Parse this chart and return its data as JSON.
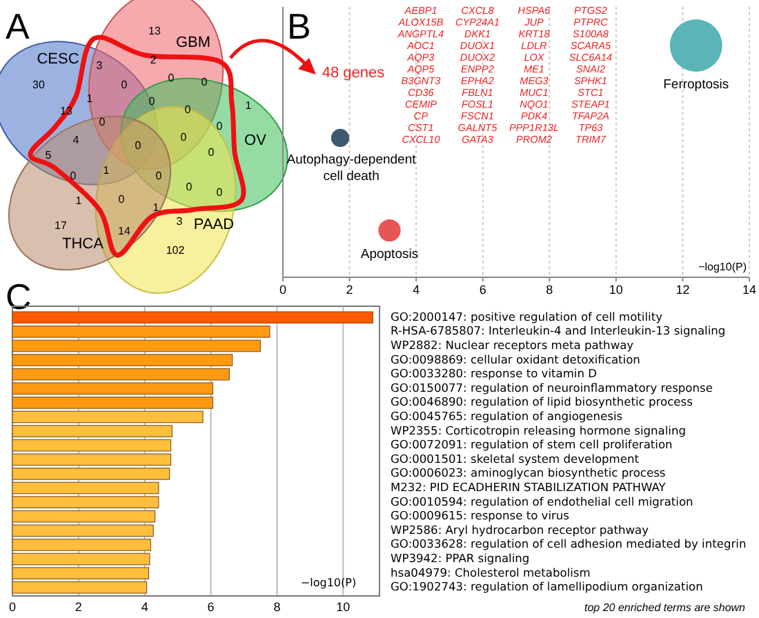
{
  "chart_data": [
    {
      "type": "other",
      "title": "A",
      "categories": [
        "CESC",
        "GBM",
        "OV",
        "PAAD",
        "THCA"
      ],
      "colors": [
        "#4a72c8",
        "#f0646a",
        "#3cbf5a",
        "#f0e650",
        "#b98a6a"
      ],
      "annotations": [
        "13",
        "3",
        "2",
        "30",
        "0",
        "0",
        "0",
        "1",
        "1",
        "13",
        "0",
        "0",
        "0",
        "0",
        "4",
        "0",
        "0",
        "5",
        "0",
        "1",
        "0",
        "0",
        "1",
        "0",
        "0",
        "0",
        "1",
        "17",
        "3",
        "14",
        "102"
      ]
    },
    {
      "type": "bubble",
      "title": "B",
      "orientation": "horizontal",
      "categories": [
        null,
        null,
        null
      ],
      "xlabel": "−log10(P)",
      "xlim": [
        0,
        14
      ],
      "xticks": [
        0,
        2,
        4,
        6,
        8,
        10,
        12,
        14
      ],
      "grid": "x",
      "series": [
        {
          "name": "Ferroptosis",
          "color": "#5bb5b8",
          "values": [
            12.4,
            null,
            null
          ],
          "sizes": [
            1,
            null,
            null
          ]
        },
        {
          "name": "Autophagy-dependent cell death",
          "color": "#3e5a6e",
          "values": [
            null,
            1.72,
            null
          ],
          "sizes": [
            null,
            0.12,
            null
          ]
        },
        {
          "name": "Apoptosis",
          "color": "#e85555",
          "values": [
            null,
            null,
            3.2
          ],
          "sizes": [
            null,
            null,
            0.18
          ]
        }
      ],
      "annotations": [
        "48 genes",
        "AEBP1",
        "ALOX15B",
        "ANGPTL4",
        "AOC1",
        "AQP3",
        "AQP5",
        "B3GNT3",
        "CD36",
        "CEMIP",
        "CP",
        "CST1",
        "CXCL10",
        "CXCL8",
        "CYP24A1",
        "DKK1",
        "DUOX1",
        "DUOX2",
        "ENPP2",
        "EPHA2",
        "FBLN1",
        "FOSL1",
        "FSCN1",
        "GALNT5",
        "GATA3",
        "HSPA6",
        "JUP",
        "KRT18",
        "LDLR",
        "LOX",
        "ME1",
        "MEG3",
        "MUC1",
        "NQO1",
        "PDK4",
        "PPP1R13L",
        "PROM2",
        "PTGS2",
        "PTPRC",
        "S100A8",
        "SCARA5",
        "SLC6A14",
        "SNAI2",
        "SPHK1",
        "STC1",
        "STEAP1",
        "TFAP2A",
        "TP63",
        "TRIM7"
      ]
    },
    {
      "type": "bar",
      "title": "C",
      "orientation": "horizontal",
      "xlabel": "−log10(P)",
      "xlim": [
        0,
        11.1
      ],
      "xticks": [
        0,
        2,
        4,
        6,
        8,
        10
      ],
      "grid": "x",
      "categories": [
        "GO:2000147: positive regulation of cell motility",
        "R-HSA-6785807: Interleukin-4 and Interleukin-13 signaling",
        "WP2882: Nuclear receptors meta pathway",
        "GO:0098869: cellular oxidant detoxification",
        "GO:0033280: response to vitamin D",
        "GO:0150077: regulation of neuroinflammatory response",
        "GO:0046890: regulation of lipid biosynthetic process",
        "GO:0045765: regulation of angiogenesis",
        "WP2355: Corticotropin releasing hormone signaling",
        "GO:0072091: regulation of stem cell proliferation",
        "GO:0001501: skeletal system development",
        "GO:0006023: aminoglycan biosynthetic process",
        "M232: PID ECADHERIN STABILIZATION PATHWAY",
        "GO:0010594: regulation of endothelial cell migration",
        "GO:0009615: response to virus",
        "WP2586: Aryl hydrocarbon receptor pathway",
        "GO:0033628: regulation of cell adhesion mediated by integrin",
        "WP3942: PPAR signaling",
        "hsa04979: Cholesterol metabolism",
        "GO:1902743: regulation of lamellipodium organization"
      ],
      "values": [
        10.9,
        7.78,
        7.5,
        6.65,
        6.56,
        6.06,
        6.06,
        5.76,
        4.83,
        4.79,
        4.79,
        4.75,
        4.42,
        4.42,
        4.31,
        4.26,
        4.18,
        4.15,
        4.12,
        4.06
      ],
      "colors": [
        "#ff5a00",
        "#ff9a10",
        "#ff9a10",
        "#ff9a10",
        "#ff9a10",
        "#ff9a10",
        "#ff9a10",
        "#ffbe3c",
        "#ffbe3c",
        "#ffbe3c",
        "#ffbe3c",
        "#ffbe3c",
        "#ffbe3c",
        "#ffbe3c",
        "#ffbe3c",
        "#ffbe3c",
        "#ffbe3c",
        "#ffbe3c",
        "#ffbe3c",
        "#ffbe3c"
      ],
      "annotations": [
        "top 20 enriched terms are shown"
      ]
    }
  ]
}
